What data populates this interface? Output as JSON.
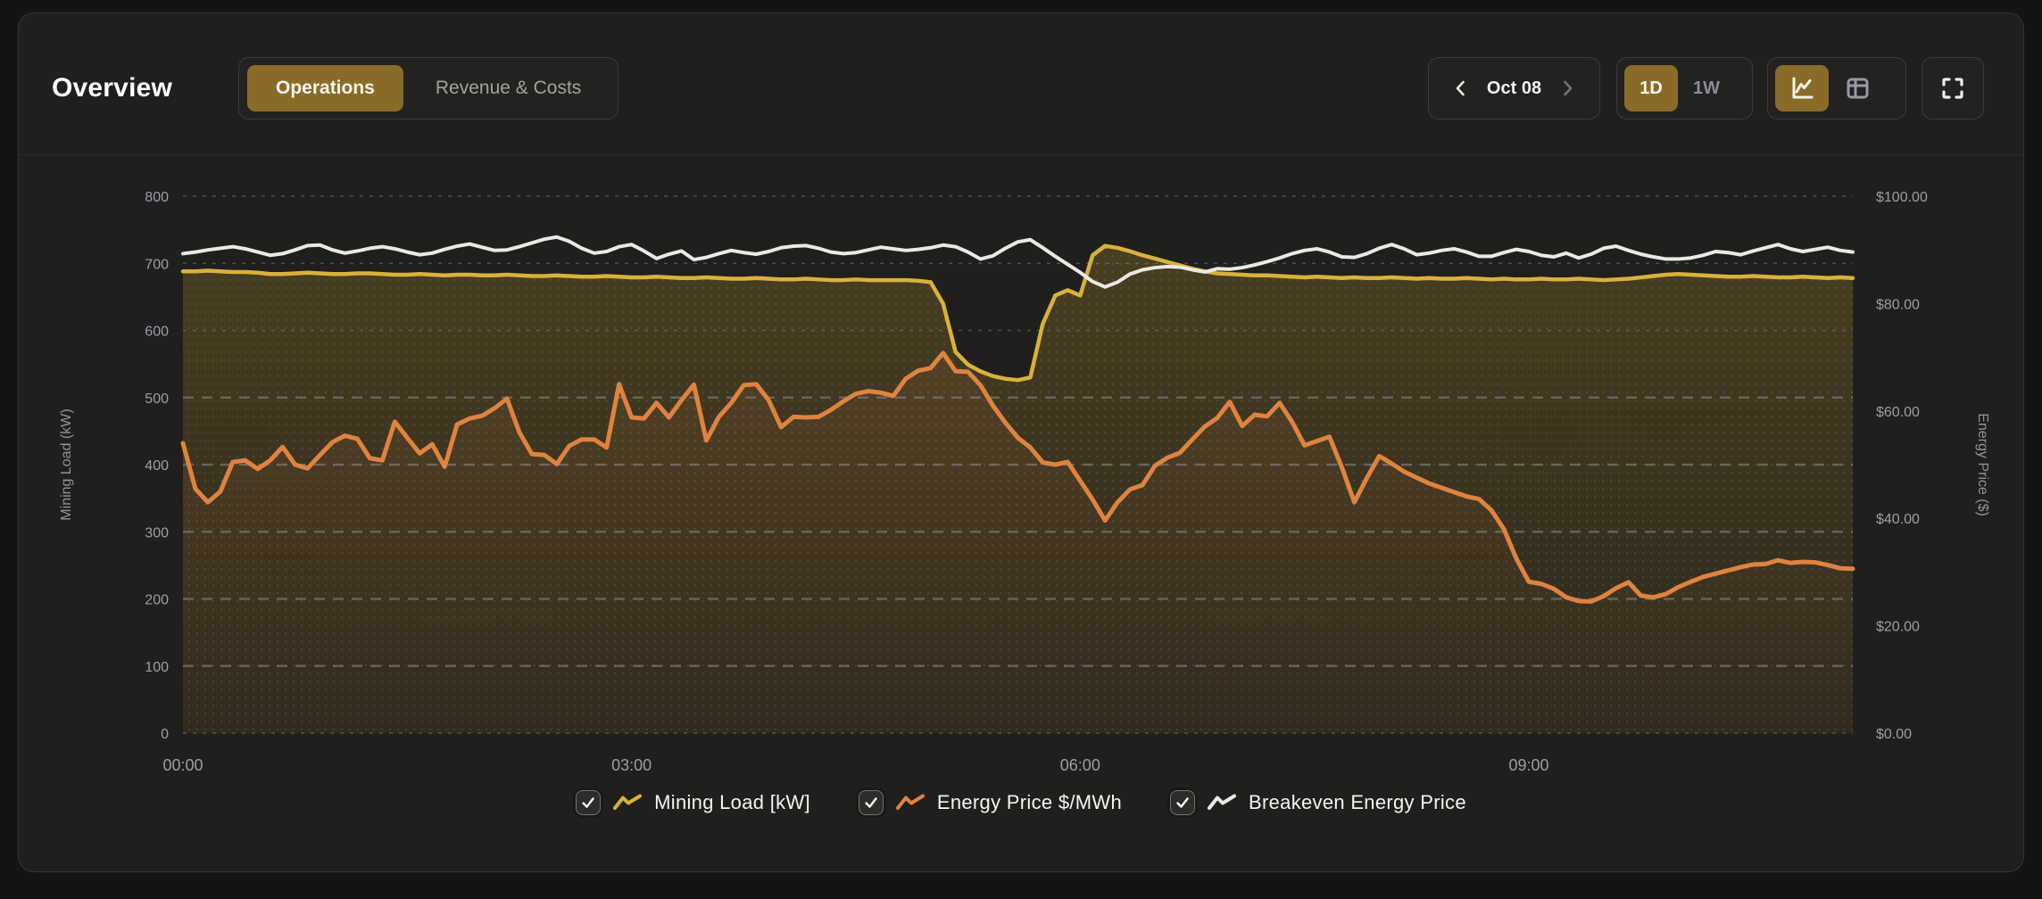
{
  "header": {
    "title": "Overview",
    "tabs": [
      {
        "label": "Operations",
        "active": true
      },
      {
        "label": "Revenue & Costs",
        "active": false
      }
    ],
    "date_nav": {
      "label": "Oct 08"
    },
    "range_options": [
      {
        "label": "1D",
        "active": true
      },
      {
        "label": "1W",
        "active": false
      }
    ],
    "view_options": [
      {
        "icon": "line-chart-icon",
        "active": true
      },
      {
        "icon": "table-icon",
        "active": false
      }
    ]
  },
  "colors": {
    "accent_gold": "#8a6b28",
    "panel_bg": "#201f1e",
    "series_mining_load": "#d9b13c",
    "series_energy_price": "#df8340",
    "series_breakeven": "#e9e9e6",
    "grid": "#8b8f98",
    "tick_text": "#9b9fa7"
  },
  "chart_data": {
    "type": "line",
    "x_axis": {
      "step_minutes": 5,
      "total_minutes": 670,
      "ticks": [
        {
          "minutes": 0,
          "label": "00:00"
        },
        {
          "minutes": 180,
          "label": "03:00"
        },
        {
          "minutes": 360,
          "label": "06:00"
        },
        {
          "minutes": 540,
          "label": "09:00"
        }
      ]
    },
    "left_axis": {
      "title": "Mining Load (kW)",
      "min": 0,
      "max": 800,
      "tick_step": 100
    },
    "right_axis": {
      "title": "Energy Price ($)",
      "min": 0,
      "max": 100,
      "ticks": [
        {
          "value": 0,
          "label": "$0.00"
        },
        {
          "value": 20,
          "label": "$20.00"
        },
        {
          "value": 40,
          "label": "$40.00"
        },
        {
          "value": 60,
          "label": "$60.00"
        },
        {
          "value": 80,
          "label": "$80.00"
        },
        {
          "value": 100,
          "label": "$100.00"
        }
      ]
    },
    "series": [
      {
        "name": "Mining Load [kW]",
        "axis": "left",
        "color": "#d9b13c",
        "checked": true,
        "area_fill": true,
        "line_width": 4.5,
        "values": [
          688,
          688,
          689,
          688,
          687,
          687,
          686,
          684,
          684,
          685,
          686,
          685,
          684,
          684,
          685,
          685,
          684,
          683,
          683,
          684,
          683,
          682,
          683,
          683,
          682,
          682,
          683,
          682,
          681,
          681,
          682,
          681,
          680,
          680,
          681,
          680,
          679,
          679,
          680,
          679,
          678,
          678,
          679,
          678,
          677,
          677,
          678,
          677,
          676,
          676,
          677,
          676,
          675,
          675,
          676,
          675,
          675,
          675,
          675,
          674,
          672,
          640,
          568,
          549,
          539,
          532,
          528,
          526,
          530,
          610,
          652,
          660,
          652,
          712,
          726,
          723,
          718,
          712,
          707,
          702,
          697,
          692,
          688,
          685,
          684,
          683,
          682,
          682,
          681,
          680,
          679,
          680,
          679,
          678,
          679,
          678,
          678,
          679,
          678,
          677,
          678,
          677,
          677,
          678,
          677,
          676,
          677,
          676,
          676,
          677,
          676,
          676,
          677,
          676,
          675,
          676,
          677,
          679,
          681,
          683,
          684,
          683,
          682,
          681,
          680,
          680,
          681,
          680,
          679,
          679,
          680,
          679,
          678,
          679,
          678
        ]
      },
      {
        "name": "Energy Price $/MWh",
        "axis": "right",
        "color": "#df8340",
        "checked": true,
        "area_fill": false,
        "line_width": 5,
        "values": [
          54.0,
          45.5,
          43.0,
          45.0,
          50.5,
          50.8,
          49.2,
          50.8,
          53.3,
          50.0,
          49.3,
          51.8,
          54.2,
          55.4,
          54.8,
          51.2,
          50.8,
          58.0,
          55.0,
          52.1,
          53.8,
          49.6,
          57.5,
          58.6,
          59.1,
          60.5,
          62.3,
          56.0,
          52.0,
          51.8,
          50.1,
          53.5,
          54.7,
          54.7,
          53.2,
          65.0,
          58.8,
          58.6,
          61.5,
          58.8,
          62.0,
          64.9,
          54.5,
          58.9,
          61.5,
          64.8,
          65.0,
          62.0,
          57.0,
          58.9,
          58.8,
          58.9,
          60.2,
          61.8,
          63.2,
          63.7,
          63.4,
          62.8,
          66.0,
          67.5,
          68.0,
          70.8,
          67.4,
          67.3,
          64.8,
          61.0,
          57.8,
          55.0,
          53.2,
          50.4,
          50.0,
          50.5,
          47.0,
          43.5,
          39.6,
          43.0,
          45.4,
          46.2,
          49.8,
          51.3,
          52.2,
          54.7,
          57.1,
          58.7,
          61.7,
          57.2,
          59.3,
          59.0,
          61.5,
          58.0,
          53.6,
          54.4,
          55.2,
          49.5,
          43.0,
          47.5,
          51.6,
          50.2,
          48.7,
          47.6,
          46.5,
          45.7,
          44.9,
          44.1,
          43.6,
          41.5,
          38.0,
          32.5,
          28.2,
          27.8,
          26.9,
          25.3,
          24.6,
          24.5,
          25.5,
          27.0,
          28.1,
          25.6,
          25.3,
          25.9,
          27.2,
          28.2,
          29.1,
          29.7,
          30.3,
          30.9,
          31.4,
          31.5,
          32.2,
          31.7,
          31.9,
          31.8,
          31.3,
          30.7,
          30.6
        ]
      },
      {
        "name": "Breakeven Energy Price",
        "axis": "right",
        "color": "#e9e9e6",
        "checked": true,
        "area_fill": false,
        "line_width": 4,
        "values": [
          89.3,
          89.6,
          90.0,
          90.3,
          90.6,
          90.2,
          89.6,
          89.0,
          89.3,
          90.0,
          90.8,
          90.9,
          90.0,
          89.4,
          89.8,
          90.3,
          90.6,
          90.2,
          89.6,
          89.1,
          89.4,
          90.1,
          90.7,
          91.1,
          90.5,
          89.9,
          90.0,
          90.6,
          91.3,
          92.0,
          92.4,
          91.6,
          90.3,
          89.4,
          89.7,
          90.6,
          91.0,
          89.8,
          88.4,
          89.2,
          89.8,
          88.2,
          88.6,
          89.3,
          89.9,
          89.5,
          89.2,
          89.7,
          90.4,
          90.7,
          90.8,
          90.3,
          89.6,
          89.3,
          89.5,
          90.0,
          90.5,
          90.2,
          89.9,
          90.1,
          90.4,
          90.9,
          90.6,
          89.6,
          88.3,
          88.9,
          90.3,
          91.5,
          91.9,
          90.4,
          88.8,
          87.3,
          85.8,
          84.1,
          83.1,
          84.0,
          85.5,
          86.3,
          86.7,
          86.9,
          86.8,
          86.3,
          85.9,
          86.5,
          86.4,
          86.7,
          87.2,
          87.8,
          88.5,
          89.3,
          89.9,
          90.2,
          89.6,
          88.7,
          88.6,
          89.3,
          90.3,
          91.0,
          90.2,
          89.1,
          89.4,
          89.9,
          90.2,
          89.6,
          88.8,
          88.8,
          89.5,
          90.1,
          89.7,
          89.0,
          88.7,
          89.4,
          88.5,
          89.2,
          90.3,
          90.7,
          89.9,
          89.2,
          88.7,
          88.3,
          88.3,
          88.5,
          89.0,
          89.7,
          89.5,
          89.1,
          89.8,
          90.4,
          91.0,
          90.2,
          89.7,
          90.1,
          90.5,
          89.9,
          89.6
        ]
      }
    ]
  }
}
